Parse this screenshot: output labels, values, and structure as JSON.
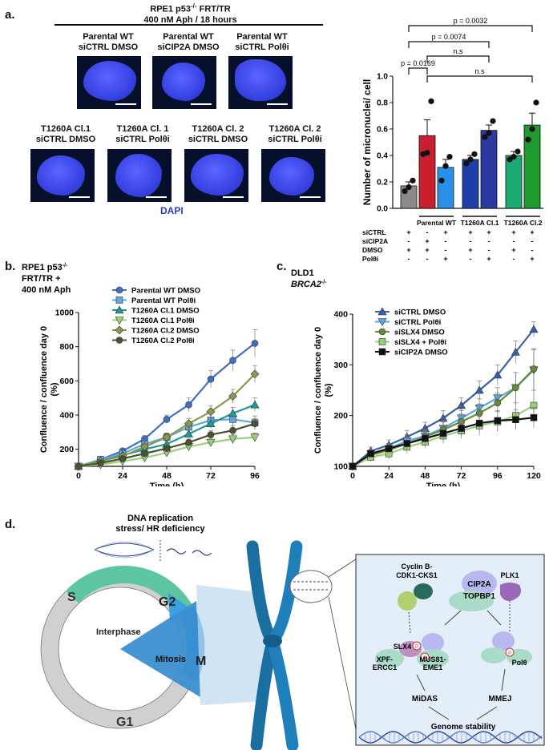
{
  "panel_a": {
    "letter": "a.",
    "title_line1": "RPE1 p53",
    "title_sup": "-/-",
    "title_line1_suffix": " FRT/TR",
    "title_line2": "400 nM Aph / 18 hours",
    "images": [
      {
        "line1": "Parental WT",
        "line2": "siCTRL DMSO"
      },
      {
        "line1": "Parental WT",
        "line2": "siCIP2A DMSO"
      },
      {
        "line1": "Parental WT",
        "line2": "siCTRL Polθi"
      },
      {
        "line1": "T1260A Cl.1",
        "line2": "siCTRL DMSO"
      },
      {
        "line1": "T1260A Cl. 1",
        "line2": "siCTRL Polθi"
      },
      {
        "line1": "T1260A Cl. 2",
        "line2": "siCTRL DMSO"
      },
      {
        "line1": "T1260A Cl. 2",
        "line2": "siCTRL Polθi"
      }
    ],
    "stain_label": "DAPI"
  },
  "bar_chart": {
    "ylabel": "Number of micronuclei/ cell",
    "yticks": [
      "0.0",
      "0.2",
      "0.4",
      "0.6",
      "0.8",
      "1.0"
    ],
    "pvalues": [
      "p = 0.0032",
      "p = 0.0074",
      "p = 0.0169",
      "n.s",
      "n.s"
    ],
    "groups": [
      "Parental WT",
      "T1260A Cl.1",
      "T1260A Cl.2"
    ],
    "condition_rows": [
      {
        "name": "siCTRL",
        "marks": [
          "+",
          "-",
          "+",
          "+",
          "+",
          "+",
          "+"
        ]
      },
      {
        "name": "siCIP2A",
        "marks": [
          "-",
          "+",
          "-",
          "-",
          "-",
          "-",
          "-"
        ]
      },
      {
        "name": "DMSO",
        "marks": [
          "+",
          "+",
          "-",
          "+",
          "-",
          "+",
          "-"
        ]
      },
      {
        "name": "Polθi",
        "marks": [
          "-",
          "-",
          "+",
          "-",
          "+",
          "-",
          "+"
        ]
      }
    ]
  },
  "chart_data": [
    {
      "type": "bar",
      "categories": [
        "WT siCTRL DMSO",
        "WT siCIP2A DMSO",
        "WT siCTRL Polθi",
        "Cl.1 DMSO",
        "Cl.1 Polθi",
        "Cl.2 DMSO",
        "Cl.2 Polθi"
      ],
      "values": [
        0.17,
        0.55,
        0.31,
        0.37,
        0.59,
        0.4,
        0.63
      ],
      "errors": [
        0.03,
        0.12,
        0.06,
        0.03,
        0.04,
        0.03,
        0.09
      ],
      "points": [
        [
          0.13,
          0.16,
          0.21
        ],
        [
          0.41,
          0.42,
          0.81
        ],
        [
          0.21,
          0.32,
          0.39
        ],
        [
          0.34,
          0.37,
          0.41
        ],
        [
          0.54,
          0.57,
          0.66
        ],
        [
          0.37,
          0.39,
          0.43
        ],
        [
          0.52,
          0.6,
          0.8
        ]
      ],
      "colors": [
        "#8a8a8a",
        "#c8202e",
        "#2a8fe8",
        "#1e3fa8",
        "#2a3aa0",
        "#1aa873",
        "#1e9a2e"
      ],
      "ylim": [
        0,
        1.0
      ],
      "ylabel": "Number of micronuclei/ cell"
    },
    {
      "type": "line",
      "label_line1": "RPE1 p53",
      "label_sup": "-/-",
      "label_line2": "FRT/TR +",
      "label_line3": "400 nM Aph",
      "xlabel": "Time (h)",
      "ylabel": "Confluence / confluence  day 0 (%)",
      "ylabel_line1": "Confluence / confluence  day 0",
      "ylabel_line2": "(%)",
      "xticks": [
        0,
        24,
        48,
        72,
        96
      ],
      "yticks": [
        200,
        400,
        600,
        800,
        1000
      ],
      "xlim": [
        0,
        96
      ],
      "ylim": [
        100,
        1000
      ],
      "x": [
        0,
        12,
        24,
        36,
        48,
        60,
        72,
        84,
        96
      ],
      "series": [
        {
          "name": "Parental WT DMSO",
          "color": "#3f6fc4",
          "marker": "circle",
          "values": [
            100,
            140,
            190,
            260,
            375,
            460,
            610,
            720,
            820
          ],
          "err": [
            10,
            12,
            15,
            20,
            25,
            40,
            50,
            60,
            80
          ]
        },
        {
          "name": "Parental WT Polθi",
          "color": "#5fa8e0",
          "marker": "square",
          "values": [
            100,
            140,
            175,
            230,
            270,
            330,
            370,
            375,
            355
          ],
          "err": [
            10,
            10,
            15,
            20,
            25,
            30,
            40,
            40,
            40
          ]
        },
        {
          "name": "T1260A Cl.1 DMSO",
          "color": "#1f9a98",
          "marker": "triangle-up",
          "values": [
            100,
            130,
            165,
            200,
            230,
            290,
            350,
            410,
            460
          ],
          "err": [
            10,
            10,
            12,
            15,
            20,
            25,
            30,
            35,
            40
          ]
        },
        {
          "name": "T1260A Cl.1 Polθi",
          "color": "#9ad07a",
          "marker": "triangle-down",
          "values": [
            100,
            110,
            130,
            150,
            180,
            215,
            240,
            260,
            270
          ],
          "err": [
            8,
            8,
            10,
            12,
            15,
            20,
            20,
            25,
            25
          ]
        },
        {
          "name": "T1260A Cl.2 DMSO",
          "color": "#8a9a4a",
          "marker": "diamond",
          "values": [
            100,
            130,
            160,
            215,
            270,
            350,
            420,
            510,
            640
          ],
          "err": [
            10,
            10,
            12,
            18,
            22,
            28,
            35,
            40,
            50
          ]
        },
        {
          "name": "T1260A Cl.2 Polθi",
          "color": "#4a5230",
          "marker": "circle",
          "values": [
            100,
            120,
            145,
            175,
            205,
            240,
            285,
            310,
            350
          ],
          "err": [
            8,
            10,
            12,
            15,
            18,
            20,
            25,
            28,
            30
          ]
        }
      ]
    },
    {
      "type": "line",
      "label_line1": "DLD1",
      "label_line2": "BRCA2",
      "label_sup": "-/-",
      "xlabel": "Time (h)",
      "ylabel": "Confluence / confluence  day 0 (%)",
      "ylabel_line1": "Confluence / confluence  day 0",
      "ylabel_line2": "(%)",
      "xticks": [
        0,
        24,
        48,
        72,
        96,
        120
      ],
      "yticks": [
        100,
        200,
        300,
        400
      ],
      "xlim": [
        0,
        120
      ],
      "ylim": [
        100,
        400
      ],
      "x": [
        0,
        12,
        24,
        36,
        48,
        60,
        72,
        84,
        96,
        108,
        120
      ],
      "series": [
        {
          "name": "siCTRL DMSO",
          "color": "#3a5fa8",
          "marker": "triangle-up",
          "values": [
            100,
            130,
            142,
            158,
            175,
            195,
            220,
            250,
            280,
            325,
            370
          ],
          "err": [
            5,
            8,
            10,
            12,
            12,
            15,
            15,
            18,
            20,
            22,
            15
          ]
        },
        {
          "name": "siCTRL Polθi",
          "color": "#5aa8e0",
          "marker": "triangle-down",
          "values": [
            100,
            125,
            135,
            150,
            160,
            175,
            195,
            215,
            235,
            255,
            290
          ],
          "err": [
            5,
            8,
            10,
            12,
            12,
            15,
            15,
            18,
            20,
            30,
            40
          ]
        },
        {
          "name": "siSLX4 DMSO",
          "color": "#6a8a3a",
          "marker": "circle",
          "values": [
            100,
            122,
            132,
            145,
            158,
            172,
            188,
            205,
            225,
            255,
            292
          ],
          "err": [
            5,
            8,
            10,
            12,
            12,
            15,
            15,
            18,
            20,
            30,
            40
          ]
        },
        {
          "name": "siSLX4 + Polθi",
          "color": "#9ad07a",
          "marker": "square",
          "values": [
            100,
            118,
            125,
            138,
            148,
            160,
            170,
            180,
            188,
            200,
            220
          ],
          "err": [
            5,
            8,
            10,
            12,
            12,
            15,
            15,
            18,
            20,
            25,
            30
          ]
        },
        {
          "name": "siCIP2A DMSO",
          "color": "#111111",
          "marker": "square",
          "values": [
            100,
            125,
            135,
            145,
            155,
            165,
            175,
            185,
            190,
            192,
            196
          ],
          "err": [
            5,
            8,
            10,
            12,
            12,
            15,
            15,
            18,
            20,
            20,
            20
          ]
        }
      ]
    }
  ],
  "panel_b": {
    "letter": "b."
  },
  "panel_c": {
    "letter": "c."
  },
  "panel_d": {
    "letter": "d.",
    "header_line1": "DNA replication",
    "header_line2": "stress/ HR deficiency",
    "cycle": {
      "s": "S",
      "g2": "G2",
      "m": "M",
      "g1": "G1",
      "interphase": "Interphase",
      "mitosis": "Mitosis"
    },
    "proteins": {
      "cdk": [
        "Cyclin B-",
        "CDK1-CKS1"
      ],
      "cip2a": "CIP2A",
      "topbp1": "TOPBP1",
      "plk1": "PLK1",
      "slx4": "SLX4",
      "xpf": [
        "XPF-",
        "ERCC1"
      ],
      "mus81": [
        "MUS81-",
        "EME1"
      ],
      "pol": "Polθ",
      "p": "P",
      "midas": "MiDAS",
      "mmej": "MMEJ",
      "genome": "Genome stability"
    }
  }
}
